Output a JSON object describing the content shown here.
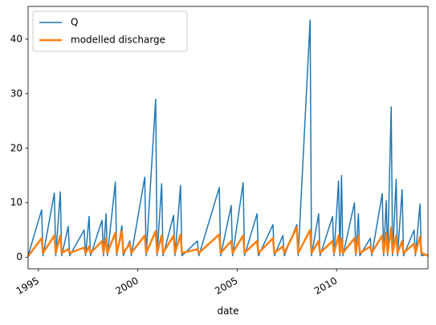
{
  "chart_data": {
    "type": "line",
    "xlabel": "date",
    "x": [
      1994.48,
      1995.16,
      1995.23,
      1995.8,
      1995.87,
      1996.1,
      1996.17,
      1996.5,
      1996.57,
      1997.3,
      1997.37,
      1997.55,
      1997.62,
      1998.2,
      1998.27,
      1998.4,
      1998.47,
      1998.87,
      1998.94,
      1999.2,
      1999.27,
      1999.6,
      1999.67,
      2000.35,
      2000.42,
      2000.9,
      2000.97,
      2001.2,
      2001.27,
      2001.8,
      2001.87,
      2002.15,
      2002.22,
      2003.0,
      2003.07,
      2004.1,
      2004.17,
      2004.7,
      2004.77,
      2005.3,
      2005.37,
      2006.0,
      2006.07,
      2006.8,
      2006.87,
      2007.3,
      2007.37,
      2008.0,
      2008.07,
      2008.67,
      2008.74,
      2009.1,
      2009.17,
      2009.8,
      2009.87,
      2010.1,
      2010.17,
      2010.25,
      2010.32,
      2010.9,
      2010.97,
      2011.1,
      2011.17,
      2011.7,
      2011.77,
      2012.3,
      2012.37,
      2012.5,
      2012.57,
      2012.75,
      2012.82,
      2013.0,
      2013.07,
      2013.3,
      2013.37,
      2013.9,
      2013.97,
      2014.2,
      2014.27,
      2014.6
    ],
    "series": [
      {
        "name": "Q",
        "color": "#1f77b4",
        "width": 1.5,
        "values": [
          0.3,
          8.7,
          0.3,
          11.8,
          0.3,
          12,
          0.3,
          5.7,
          0.3,
          5,
          0.3,
          7.5,
          0.3,
          6.8,
          0.3,
          8,
          0.3,
          13.8,
          0.3,
          5.8,
          0.3,
          3,
          0.3,
          14.7,
          0.3,
          29,
          0.3,
          13.5,
          0.3,
          7.7,
          0.3,
          13.2,
          0.3,
          3,
          0.3,
          12.8,
          0.3,
          9.5,
          0.3,
          13.7,
          0.3,
          8,
          0.3,
          6,
          0.3,
          4,
          0.3,
          6,
          0.3,
          43.5,
          0.3,
          8,
          0.3,
          7.5,
          0.3,
          14,
          0.3,
          15,
          0.3,
          10,
          0.3,
          8,
          0.3,
          3.5,
          0.3,
          11.7,
          0.3,
          10.4,
          0.3,
          27.6,
          0.3,
          14.3,
          0.3,
          12.4,
          0.3,
          5,
          0.3,
          9.8,
          0.3,
          0.5
        ]
      },
      {
        "name": "modelled discharge",
        "color": "#ff7f0e",
        "width": 2.5,
        "values": [
          0.2,
          3.5,
          0.8,
          4,
          0.8,
          4,
          0.8,
          1.5,
          0.8,
          1.8,
          0.8,
          2,
          0.8,
          3,
          0.8,
          3.5,
          0.8,
          4.5,
          0.8,
          4.8,
          0.8,
          2.5,
          0.8,
          4,
          0.8,
          4.8,
          0.8,
          4,
          0.8,
          4,
          0.8,
          4.2,
          0.8,
          1.5,
          0.8,
          4.2,
          0.8,
          3,
          0.8,
          4,
          0.8,
          3,
          0.8,
          3.5,
          0.8,
          2,
          0.8,
          5.5,
          0.8,
          5,
          0.8,
          3,
          0.8,
          3,
          0.8,
          4,
          0.8,
          3.5,
          0.8,
          3.5,
          0.8,
          4,
          0.8,
          2,
          0.8,
          4,
          0.8,
          4.5,
          0.8,
          5.5,
          0.8,
          4,
          0.8,
          3,
          0.8,
          2.5,
          0.8,
          3.8,
          0.8,
          0.3
        ]
      }
    ],
    "xlim": [
      1994.48,
      2014.6
    ],
    "xticks": [
      1995,
      2000,
      2005,
      2010
    ],
    "ylim": [
      -2.1,
      46
    ],
    "yticks": [
      0,
      10,
      20,
      30,
      40
    ],
    "legend": "upper left"
  }
}
